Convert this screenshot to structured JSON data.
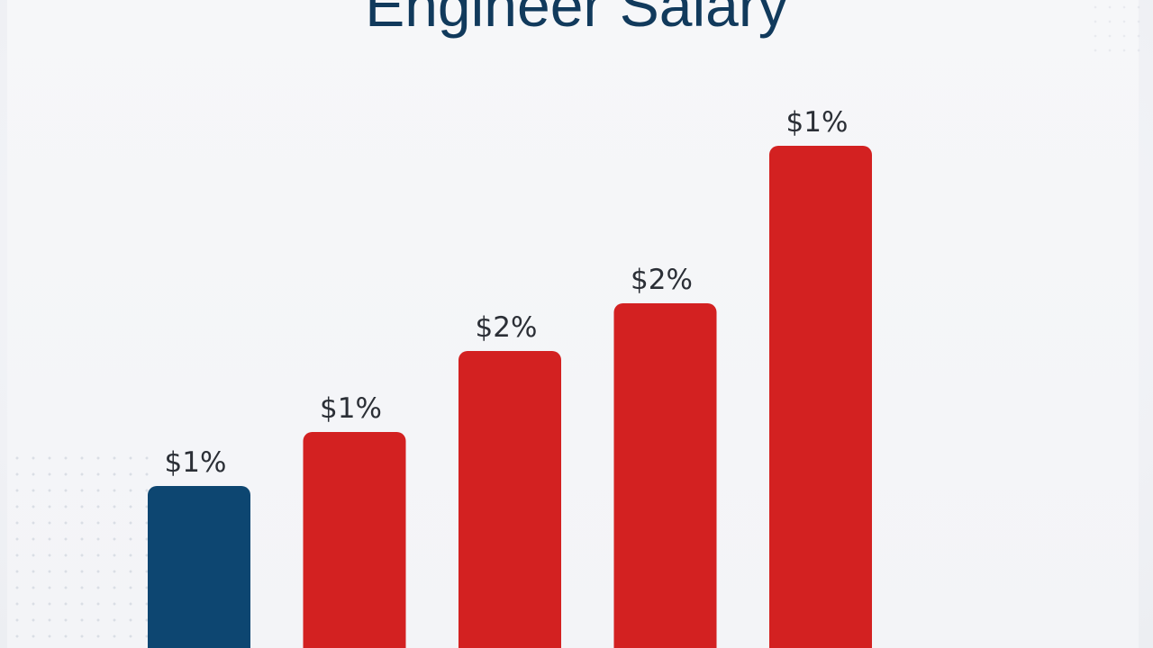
{
  "chart_data": {
    "type": "bar",
    "title": "Engineer Salary",
    "categories": [
      "",
      "",
      "",
      "",
      ""
    ],
    "values": [
      180,
      240,
      330,
      383,
      558
    ],
    "data_labels": [
      "$1%",
      "$1%",
      "$2%",
      "$2%",
      "$1%"
    ],
    "colors": [
      "#0d4671",
      "#d32121",
      "#d32121",
      "#d32121",
      "#d32121"
    ],
    "ylim": [
      0,
      620
    ],
    "grid": false,
    "legend": "none"
  }
}
